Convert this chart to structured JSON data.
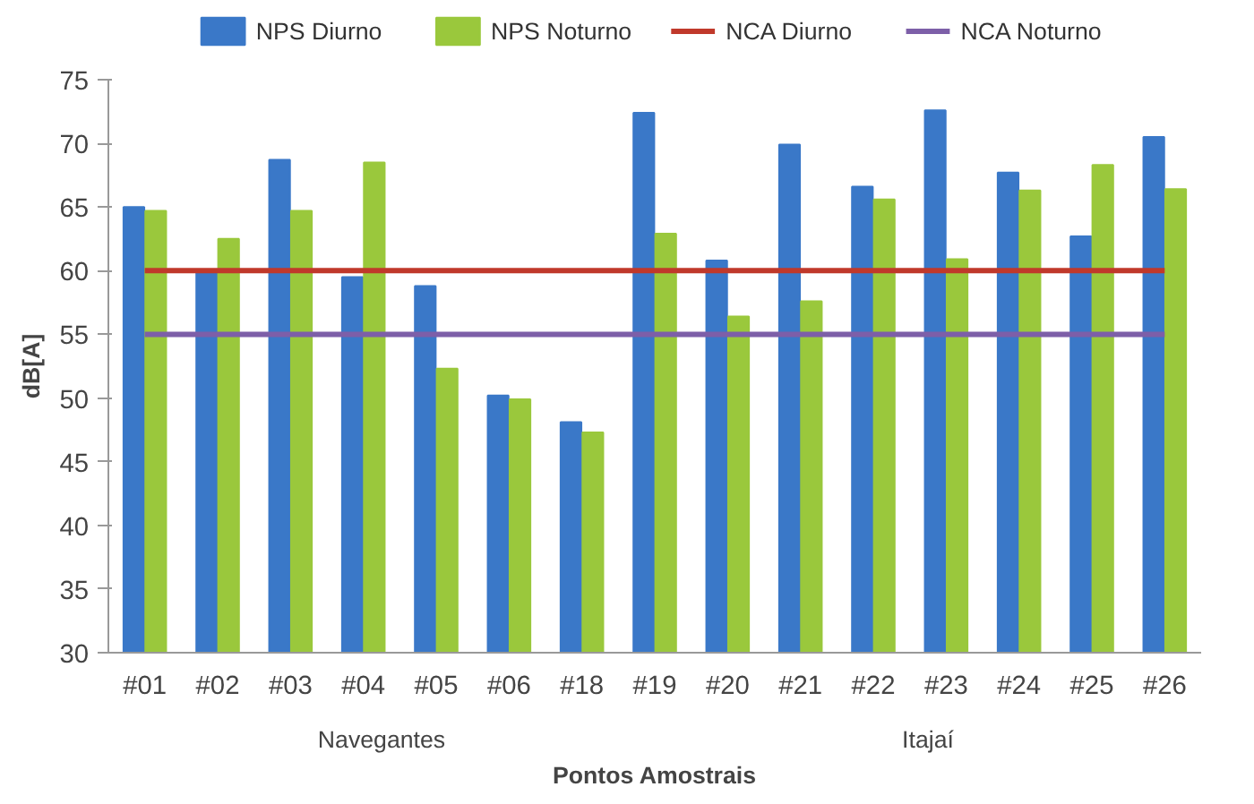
{
  "chart_data": {
    "type": "bar",
    "xlabel": "Pontos Amostrais",
    "ylabel": "dB[A]",
    "categories": [
      "#01",
      "#02",
      "#03",
      "#04",
      "#05",
      "#06",
      "#18",
      "#19",
      "#20",
      "#21",
      "#22",
      "#23",
      "#24",
      "#25",
      "#26"
    ],
    "series": [
      {
        "name": "NPS Diurno",
        "color": "#3a78c8",
        "values": [
          65.0,
          60.0,
          68.7,
          59.5,
          58.8,
          50.2,
          48.1,
          72.4,
          60.8,
          69.9,
          66.6,
          72.6,
          67.7,
          62.7,
          70.5
        ]
      },
      {
        "name": "NPS Noturno",
        "color": "#9ac83c",
        "values": [
          64.7,
          62.5,
          64.7,
          68.5,
          52.3,
          49.9,
          47.3,
          62.9,
          56.4,
          57.6,
          65.6,
          60.9,
          66.3,
          68.3,
          66.4
        ]
      },
      {
        "name": "NCA Diurno",
        "type": "line",
        "color": "#c0392b",
        "values": [
          60,
          60,
          60,
          60,
          60,
          60,
          60,
          60,
          60,
          60,
          60,
          60,
          60,
          60,
          60
        ]
      },
      {
        "name": "NCA Noturno",
        "type": "line",
        "color": "#7d5fa8",
        "values": [
          55,
          55,
          55,
          55,
          55,
          55,
          55,
          55,
          55,
          55,
          55,
          55,
          55,
          55,
          55
        ]
      }
    ],
    "annotations": [
      "Navegantes",
      "Itajaí"
    ],
    "ylim": [
      30,
      75
    ],
    "yticks": [
      30,
      35,
      40,
      45,
      50,
      55,
      60,
      65,
      70,
      75
    ],
    "grid": false,
    "legend": "top"
  }
}
